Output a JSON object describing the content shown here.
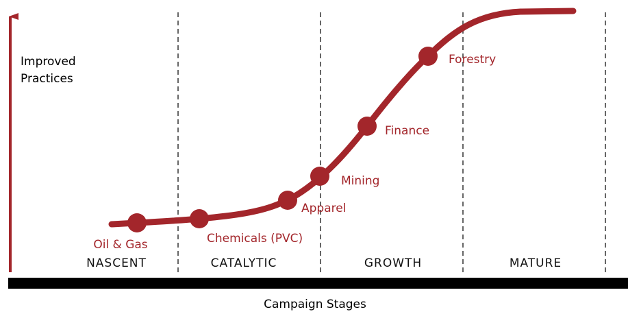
{
  "y_axis": {
    "label_lines": [
      "Improved",
      "Practices"
    ]
  },
  "x_axis": {
    "label": "Campaign Stages"
  },
  "stages": [
    "NASCENT",
    "CATALYTIC",
    "GROWTH",
    "MATURE"
  ],
  "points": [
    {
      "label": "Oil & Gas"
    },
    {
      "label": "Chemicals (PVC)"
    },
    {
      "label": "Apparel"
    },
    {
      "label": "Mining"
    },
    {
      "label": "Finance"
    },
    {
      "label": "Forestry"
    }
  ]
}
